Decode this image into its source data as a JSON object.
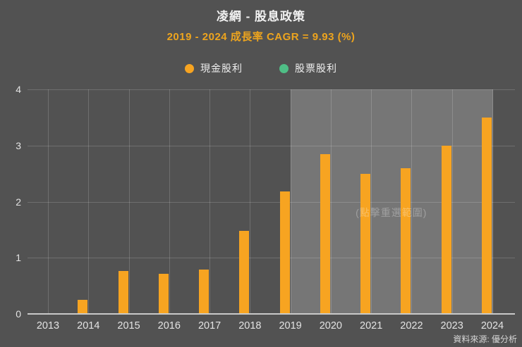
{
  "header": {
    "title": "凌網 - 股息政策",
    "subtitle": "2019 - 2024 成長率 CAGR = 9.93 (%)"
  },
  "legend": [
    {
      "label": "現金股利",
      "color": "#f7a421"
    },
    {
      "label": "股票股利",
      "color": "#4fbe86"
    }
  ],
  "watermark": "(點擊重選範圍)",
  "source": "資料來源: 優分析",
  "colors": {
    "background": "#525252",
    "highlight_band": "#767676",
    "bar_orange": "#f7a421",
    "legend_green": "#4fbe86",
    "subtitle_orange": "#eda41e",
    "axis_text": "#e3e3e3"
  },
  "chart_data": {
    "type": "bar",
    "title": "凌網 - 股息政策",
    "subtitle": "2019 - 2024 成長率 CAGR = 9.93 (%)",
    "categories": [
      "2013",
      "2014",
      "2015",
      "2016",
      "2017",
      "2018",
      "2019",
      "2020",
      "2021",
      "2022",
      "2023",
      "2024"
    ],
    "series": [
      {
        "name": "現金股利",
        "color": "#f7a421",
        "values": [
          0,
          0.25,
          0.76,
          0.72,
          0.79,
          1.48,
          2.18,
          2.85,
          2.5,
          2.6,
          3.0,
          3.5
        ]
      },
      {
        "name": "股票股利",
        "color": "#4fbe86",
        "values": [
          0,
          0,
          0,
          0,
          0,
          0,
          0,
          0,
          0,
          0,
          0,
          0
        ]
      }
    ],
    "xlabel": "",
    "ylabel": "",
    "ylim": [
      0,
      4
    ],
    "yticks": [
      0,
      1,
      2,
      3,
      4
    ],
    "grid": true,
    "legend_position": "top",
    "highlight_range": {
      "from": "2019",
      "to": "2024"
    }
  }
}
